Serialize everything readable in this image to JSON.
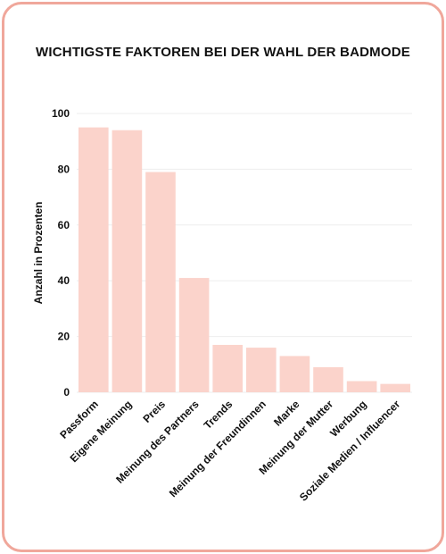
{
  "chart_data": {
    "type": "bar",
    "title": "WICHTIGSTE FAKTOREN BEI DER WAHL DER BADMODE",
    "xlabel": "",
    "ylabel": "Anzahl in Prozenten",
    "categories": [
      "Passform",
      "Eigene Meinung",
      "Preis",
      "Meinung des Partners",
      "Trends",
      "Meinung der Freundinnen",
      "Marke",
      "Meinung der Mutter",
      "Werbung",
      "Soziale Medien / Influencer"
    ],
    "values": [
      95,
      94,
      79,
      41,
      17,
      16,
      13,
      9,
      4,
      3
    ],
    "ylim": [
      0,
      100
    ],
    "yticks": [
      "0",
      "20",
      "40",
      "60",
      "80",
      "100"
    ],
    "grid": true,
    "bar_color": "#fbd3cb",
    "grid_color": "#eeeeee",
    "frame_color": "#f0a79b"
  }
}
